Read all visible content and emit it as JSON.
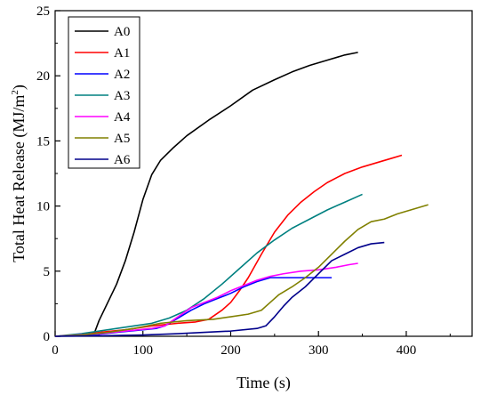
{
  "chart_data": {
    "type": "line",
    "xlabel": "Time (s)",
    "ylabel_main": "Total Heat Release (MJ/m",
    "ylabel_sup": "2",
    "ylabel_close": ")",
    "xlim": [
      0,
      475
    ],
    "ylim": [
      0,
      25
    ],
    "xticks": [
      0,
      100,
      200,
      300,
      400
    ],
    "yticks": [
      0,
      5,
      10,
      15,
      20,
      25
    ],
    "x_minor_step": 50,
    "y_minor_step": 2.5,
    "grid": false,
    "legend_position": "top-left",
    "series": [
      {
        "name": "A0",
        "color": "#000000",
        "points": [
          [
            0,
            0
          ],
          [
            40,
            0.1
          ],
          [
            45,
            0.3
          ],
          [
            50,
            1.2
          ],
          [
            60,
            2.6
          ],
          [
            70,
            4.0
          ],
          [
            80,
            5.8
          ],
          [
            90,
            8.0
          ],
          [
            100,
            10.5
          ],
          [
            110,
            12.4
          ],
          [
            120,
            13.5
          ],
          [
            135,
            14.5
          ],
          [
            150,
            15.4
          ],
          [
            175,
            16.6
          ],
          [
            200,
            17.7
          ],
          [
            225,
            18.9
          ],
          [
            250,
            19.7
          ],
          [
            270,
            20.3
          ],
          [
            290,
            20.8
          ],
          [
            310,
            21.2
          ],
          [
            330,
            21.6
          ],
          [
            345,
            21.8
          ]
        ]
      },
      {
        "name": "A1",
        "color": "#ff0000",
        "points": [
          [
            0,
            0
          ],
          [
            30,
            0.1
          ],
          [
            50,
            0.3
          ],
          [
            80,
            0.5
          ],
          [
            110,
            0.8
          ],
          [
            140,
            1.0
          ],
          [
            160,
            1.1
          ],
          [
            175,
            1.3
          ],
          [
            190,
            2.0
          ],
          [
            200,
            2.6
          ],
          [
            210,
            3.5
          ],
          [
            220,
            4.5
          ],
          [
            235,
            6.3
          ],
          [
            250,
            8.0
          ],
          [
            265,
            9.3
          ],
          [
            280,
            10.3
          ],
          [
            295,
            11.1
          ],
          [
            310,
            11.8
          ],
          [
            330,
            12.5
          ],
          [
            350,
            13.0
          ],
          [
            370,
            13.4
          ],
          [
            385,
            13.7
          ],
          [
            395,
            13.9
          ]
        ]
      },
      {
        "name": "A2",
        "color": "#0000ff",
        "points": [
          [
            0,
            0
          ],
          [
            40,
            0.1
          ],
          [
            70,
            0.3
          ],
          [
            100,
            0.5
          ],
          [
            115,
            0.6
          ],
          [
            125,
            0.8
          ],
          [
            140,
            1.4
          ],
          [
            155,
            2.0
          ],
          [
            170,
            2.5
          ],
          [
            185,
            2.9
          ],
          [
            200,
            3.3
          ],
          [
            215,
            3.8
          ],
          [
            230,
            4.2
          ],
          [
            245,
            4.5
          ],
          [
            260,
            4.5
          ],
          [
            280,
            4.5
          ],
          [
            300,
            4.5
          ],
          [
            315,
            4.5
          ]
        ]
      },
      {
        "name": "A3",
        "color": "#008080",
        "points": [
          [
            0,
            0
          ],
          [
            30,
            0.2
          ],
          [
            60,
            0.5
          ],
          [
            90,
            0.8
          ],
          [
            110,
            1.0
          ],
          [
            130,
            1.4
          ],
          [
            150,
            2.0
          ],
          [
            170,
            2.9
          ],
          [
            190,
            4.0
          ],
          [
            210,
            5.2
          ],
          [
            230,
            6.4
          ],
          [
            250,
            7.4
          ],
          [
            270,
            8.3
          ],
          [
            290,
            9.0
          ],
          [
            310,
            9.7
          ],
          [
            330,
            10.3
          ],
          [
            350,
            10.9
          ]
        ]
      },
      {
        "name": "A4",
        "color": "#ff00ff",
        "points": [
          [
            0,
            0
          ],
          [
            50,
            0.2
          ],
          [
            80,
            0.4
          ],
          [
            110,
            0.6
          ],
          [
            125,
            0.8
          ],
          [
            140,
            1.5
          ],
          [
            155,
            2.2
          ],
          [
            170,
            2.6
          ],
          [
            185,
            3.0
          ],
          [
            200,
            3.5
          ],
          [
            215,
            3.9
          ],
          [
            230,
            4.3
          ],
          [
            245,
            4.6
          ],
          [
            260,
            4.8
          ],
          [
            280,
            5.0
          ],
          [
            300,
            5.1
          ],
          [
            320,
            5.3
          ],
          [
            335,
            5.5
          ],
          [
            345,
            5.6
          ]
        ]
      },
      {
        "name": "A5",
        "color": "#808000",
        "points": [
          [
            0,
            0
          ],
          [
            30,
            0.1
          ],
          [
            60,
            0.3
          ],
          [
            90,
            0.6
          ],
          [
            120,
            1.0
          ],
          [
            150,
            1.2
          ],
          [
            180,
            1.3
          ],
          [
            200,
            1.5
          ],
          [
            220,
            1.7
          ],
          [
            235,
            2.0
          ],
          [
            245,
            2.6
          ],
          [
            255,
            3.2
          ],
          [
            270,
            3.8
          ],
          [
            285,
            4.5
          ],
          [
            300,
            5.3
          ],
          [
            315,
            6.3
          ],
          [
            330,
            7.3
          ],
          [
            345,
            8.2
          ],
          [
            360,
            8.8
          ],
          [
            375,
            9.0
          ],
          [
            390,
            9.4
          ],
          [
            405,
            9.7
          ],
          [
            425,
            10.1
          ]
        ]
      },
      {
        "name": "A6",
        "color": "#00008b",
        "points": [
          [
            0,
            0
          ],
          [
            60,
            0.05
          ],
          [
            100,
            0.1
          ],
          [
            140,
            0.2
          ],
          [
            170,
            0.3
          ],
          [
            200,
            0.4
          ],
          [
            230,
            0.6
          ],
          [
            240,
            0.8
          ],
          [
            250,
            1.5
          ],
          [
            260,
            2.3
          ],
          [
            270,
            3.0
          ],
          [
            285,
            3.8
          ],
          [
            300,
            4.8
          ],
          [
            315,
            5.8
          ],
          [
            330,
            6.3
          ],
          [
            345,
            6.8
          ],
          [
            360,
            7.1
          ],
          [
            375,
            7.2
          ]
        ]
      }
    ]
  }
}
